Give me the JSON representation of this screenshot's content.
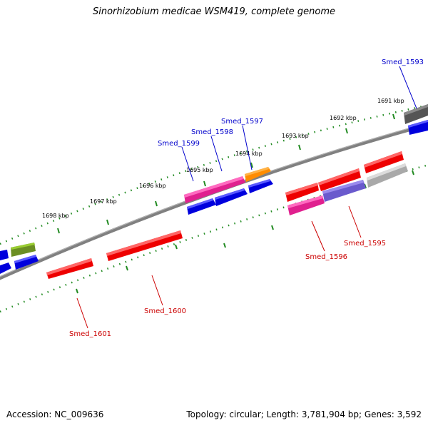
{
  "title": "Sinorhizobium medicae WSM419, complete genome",
  "accession": "Accession: NC_009636",
  "summary": "Topology: circular; Length: 3,781,904 bp; Genes: 3,592",
  "colors": {
    "backbone": "#808080",
    "ticks": "#228b22",
    "forward_label": "#0000cc",
    "reverse_label": "#cc0000"
  },
  "kbp_labels": [
    "1691 kbp",
    "1692 kbp",
    "1693 kbp",
    "1694 kbp",
    "1695 kbp",
    "1696 kbp",
    "1697 kbp",
    "1698 kbp"
  ],
  "gene_labels": {
    "smed_1593": "Smed_1593",
    "smed_1595": "Smed_1595",
    "smed_1596": "Smed_1596",
    "smed_1597": "Smed_1597",
    "smed_1598": "Smed_1598",
    "smed_1599": "Smed_1599",
    "smed_1600": "Smed_1600",
    "smed_1601": "Smed_1601"
  }
}
